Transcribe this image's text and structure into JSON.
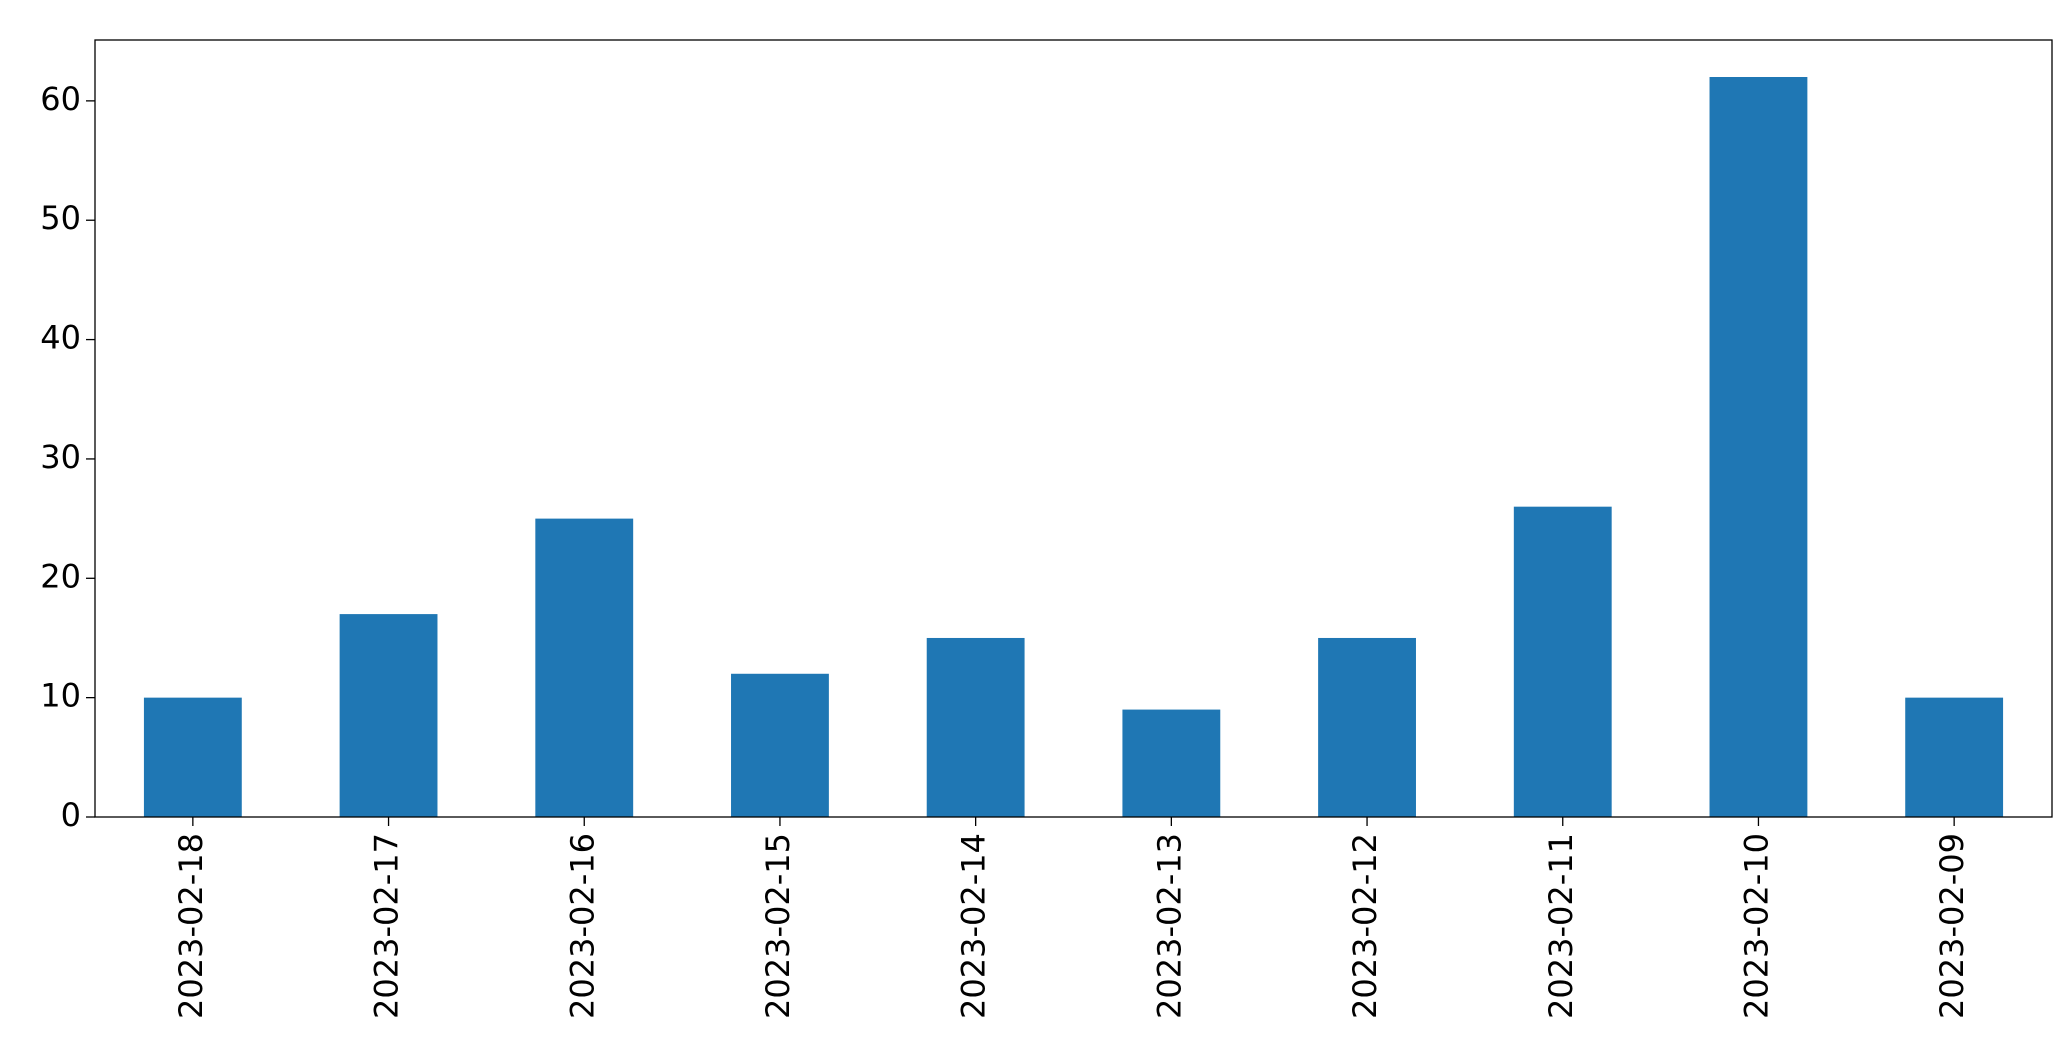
{
  "chart_data": {
    "type": "bar",
    "categories": [
      "2023-02-18",
      "2023-02-17",
      "2023-02-16",
      "2023-02-15",
      "2023-02-14",
      "2023-02-13",
      "2023-02-12",
      "2023-02-11",
      "2023-02-10",
      "2023-02-09"
    ],
    "values": [
      10,
      17,
      25,
      12,
      15,
      9,
      15,
      26,
      62,
      10
    ],
    "color": "#1f77b4",
    "ylim": [
      0,
      65.1
    ],
    "yticks": [
      0,
      10,
      20,
      30,
      40,
      50,
      60
    ],
    "grid": false
  }
}
